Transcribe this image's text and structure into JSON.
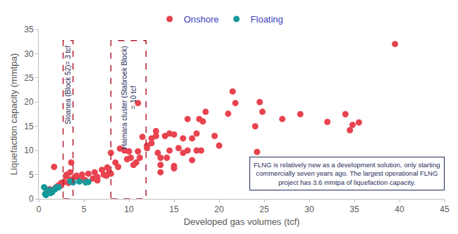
{
  "chart_data": {
    "type": "scatter",
    "x_label": "Developed gas volumes (tcf)",
    "y_label": "Liquefaction capacity (mmtpa)",
    "xlim": [
      0,
      45
    ],
    "ylim": [
      0,
      35
    ],
    "xticks": [
      0,
      5,
      10,
      15,
      20,
      25,
      30,
      35,
      40,
      45
    ],
    "yticks": [
      0,
      5,
      10,
      15,
      20,
      25,
      30,
      35
    ],
    "grid": false,
    "legend": "top",
    "series": [
      {
        "name": "Onshore",
        "color": "#e8434f",
        "marker": "circle",
        "x": [
          0.8,
          1,
          1.2,
          1.5,
          1.7,
          1.8,
          2,
          2.2,
          2.5,
          2.5,
          2.8,
          3,
          3.1,
          3.3,
          3.5,
          3.6,
          3.5,
          4,
          4.2,
          4.5,
          4.8,
          5,
          5.2,
          5.5,
          6,
          6.2,
          6.5,
          6.5,
          7,
          7.2,
          7.5,
          7.6,
          7.8,
          8,
          8,
          8.5,
          8.8,
          9,
          9.5,
          9.8,
          10,
          10.2,
          10.5,
          10.8,
          11,
          11,
          11.2,
          11.5,
          12,
          12,
          12.5,
          12.5,
          13,
          13,
          13.2,
          13.5,
          13.5,
          13.5,
          14,
          14.2,
          14.5,
          14.5,
          15,
          15,
          15,
          15.5,
          16,
          16,
          16.5,
          16.5,
          17,
          17,
          17.5,
          17.5,
          17.8,
          18,
          18.2,
          18.5,
          19.5,
          20,
          21,
          21.5,
          21.8,
          24,
          24.2,
          24.5,
          24.8,
          27,
          29,
          32,
          34,
          34.5,
          34.8,
          35.5,
          39.5
        ],
        "values": [
          1.2,
          1.5,
          2,
          1.8,
          6.6,
          2.2,
          2.5,
          2.8,
          3.3,
          2.8,
          3.5,
          4.7,
          5,
          3.3,
          4,
          7.5,
          5.5,
          4.5,
          4.8,
          4.5,
          5,
          4,
          3.8,
          5.2,
          4.2,
          5.5,
          4.5,
          3.8,
          6,
          5,
          4.8,
          6.5,
          5.5,
          5.2,
          9.5,
          7.5,
          6.6,
          10.4,
          10,
          8.2,
          9.8,
          8.5,
          7,
          7.5,
          9.8,
          19.8,
          8.5,
          12.8,
          10.5,
          11,
          12.5,
          11.5,
          13,
          14,
          9.5,
          7,
          5.5,
          8.5,
          13,
          8.5,
          10,
          13.5,
          13.3,
          6.8,
          6.3,
          10.5,
          9.5,
          12.5,
          16.5,
          10,
          8,
          12.5,
          10,
          13.5,
          16.5,
          10,
          16,
          18,
          13,
          11,
          17.6,
          22.2,
          19.8,
          15,
          9.7,
          20,
          18,
          16.5,
          17.5,
          15.9,
          17.5,
          14.2,
          15.3,
          15.8,
          32
        ]
      },
      {
        "name": "Floating",
        "color": "#17999a",
        "marker": "circle",
        "x": [
          0.6,
          0.7,
          0.8,
          0.9,
          1,
          1.2,
          1.3,
          1.5,
          1.8,
          2,
          2.2,
          3.5,
          3.8,
          4.5,
          5.2,
          5.5
        ],
        "values": [
          2.4,
          1,
          0.8,
          1.3,
          1.5,
          1.8,
          1.2,
          1.4,
          2,
          2.4,
          2.4,
          3.6,
          3.4,
          3.6,
          3.4,
          3.5
        ]
      }
    ],
    "highlights": [
      {
        "label": [
          "Sloanea (Block 52)= 3 tcf"
        ],
        "x0": 2.7,
        "x1": 3.8,
        "y0": 0,
        "y1": 32.7
      },
      {
        "label": [
          "Haimara cluster (Stabroek Block)",
          "= 10 tcf"
        ],
        "x0": 8,
        "x1": 11.9,
        "y0": 0,
        "y1": 32.7
      }
    ],
    "note": [
      "FLNG is relatively new as a development solution, only starting",
      "commercially seven years ago. The largest operational FLNG",
      "project has 3.6 mmtpa of liquefaction capacity."
    ]
  }
}
